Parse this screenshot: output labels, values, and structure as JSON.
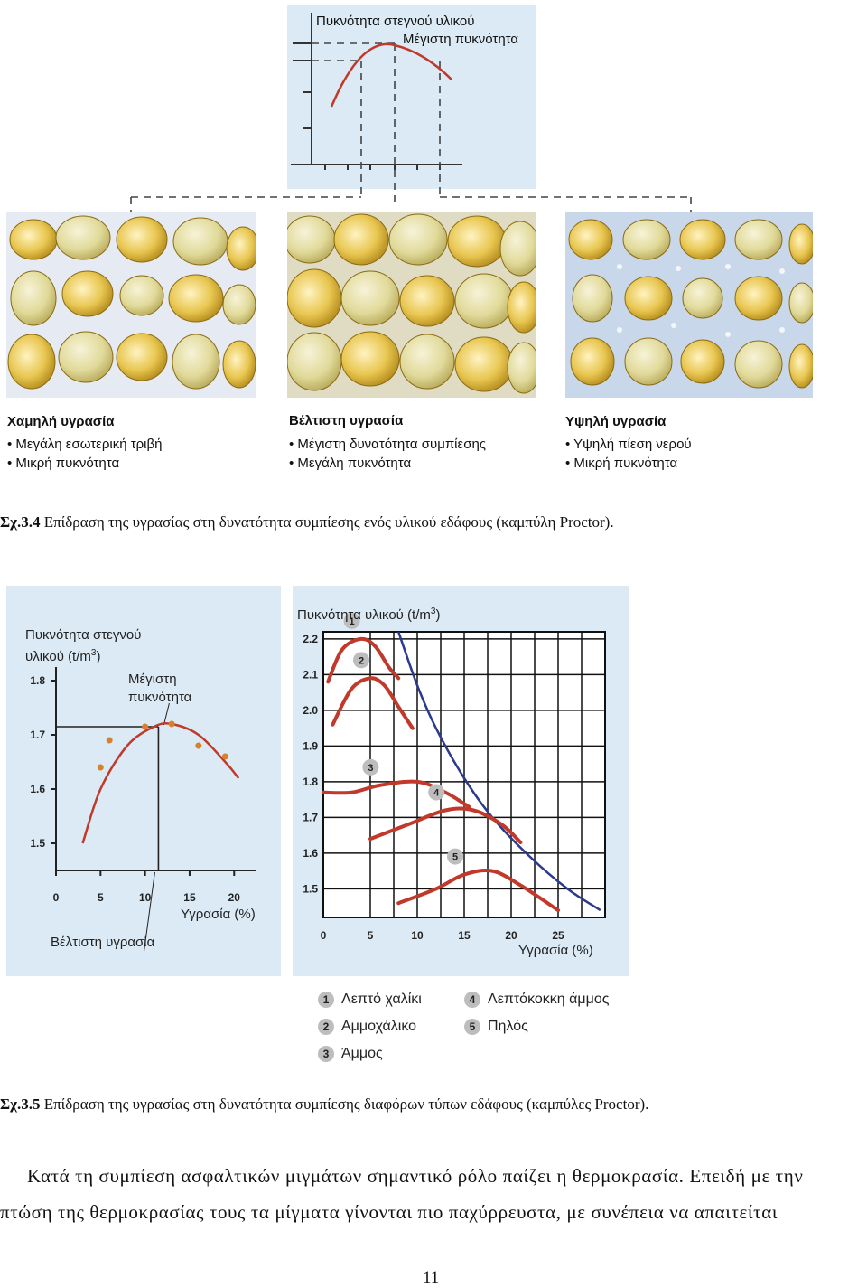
{
  "fig34": {
    "top_chart": {
      "y_label": "Πυκνότητα στεγνού υλικού",
      "peak_label": "Μέγιστη πυκνότητα"
    },
    "panels": [
      {
        "title": "Χαμηλή υγρασία",
        "bullets": [
          "Μεγάλη εσωτερική τριβή",
          "Μικρή πυκνότητα"
        ]
      },
      {
        "title": "Βέλτιστη υγρασία",
        "bullets": [
          "Μέγιστη δυνατότητα συμπίεσης",
          "Μεγάλη πυκνότητα"
        ]
      },
      {
        "title": "Υψηλή υγρασία",
        "bullets": [
          "Υψηλή πίεση νερού",
          "Μικρή πυκνότητα"
        ]
      }
    ],
    "caption_num": "Σχ.3.4",
    "caption_text": " Επίδραση της υγρασίας στη δυνατότητα συμπίεσης ενός υλικού εδάφους (καμπύλη Proctor)."
  },
  "chart_data": [
    {
      "type": "line",
      "title": "",
      "ylabel_line1": "Πυκνότητα στεγνού",
      "ylabel_line2": "υλικού (t/m",
      "ylabel_sup": "3",
      "ylabel_end": ")",
      "xlabel": "Υγρασία (%)",
      "annotation_peak": "Μέγιστη",
      "annotation_peak2": "πυκνότητα",
      "annotation_opt": "Βέλτιστη υγρασία",
      "x_ticks": [
        "0",
        "5",
        "10",
        "15",
        "20"
      ],
      "y_ticks": [
        "1.8",
        "1.7",
        "1.6",
        "1.5"
      ],
      "xlim": [
        0,
        22
      ],
      "ylim": [
        1.45,
        1.85
      ],
      "curve": {
        "x": [
          3,
          5,
          8,
          11,
          13,
          16,
          19,
          20.5
        ],
        "y": [
          1.5,
          1.6,
          1.68,
          1.715,
          1.72,
          1.7,
          1.65,
          1.62
        ]
      },
      "points": {
        "x": [
          5,
          6,
          10,
          13,
          16,
          19
        ],
        "y": [
          1.64,
          1.69,
          1.715,
          1.72,
          1.68,
          1.66
        ]
      },
      "optimum_x": 11.5,
      "optimum_y": 1.715,
      "colors": {
        "curve": "#c0392b",
        "points": "#d9802a",
        "lines": "#222222"
      }
    },
    {
      "type": "line",
      "title": "",
      "ylabel": "Πυκνότητα υλικού (t/m",
      "ylabel_sup": "3",
      "ylabel_end": ")",
      "xlabel": "Υγρασία (%)",
      "x_ticks": [
        "0",
        "5",
        "10",
        "15",
        "20",
        "25"
      ],
      "y_ticks": [
        "2.2",
        "2.1",
        "2.0",
        "1.9",
        "1.8",
        "1.7",
        "1.6",
        "1.5"
      ],
      "xlim": [
        0,
        30
      ],
      "ylim": [
        1.42,
        2.22
      ],
      "series": [
        {
          "name": "1",
          "x": [
            0.5,
            2,
            4,
            5.5,
            7,
            8
          ],
          "y": [
            2.08,
            2.17,
            2.2,
            2.18,
            2.12,
            2.09
          ]
        },
        {
          "name": "2",
          "x": [
            1,
            3,
            5,
            6.5,
            8,
            9.5
          ],
          "y": [
            1.96,
            2.06,
            2.09,
            2.07,
            2.01,
            1.95
          ]
        },
        {
          "name": "3",
          "x": [
            0,
            3,
            6,
            10,
            13,
            15.5
          ],
          "y": [
            1.77,
            1.77,
            1.79,
            1.8,
            1.77,
            1.73
          ]
        },
        {
          "name": "4",
          "x": [
            5,
            9,
            13,
            16,
            19,
            21
          ],
          "y": [
            1.64,
            1.68,
            1.72,
            1.72,
            1.68,
            1.63
          ]
        },
        {
          "name": "5",
          "x": [
            8,
            12,
            15,
            18,
            21,
            25
          ],
          "y": [
            1.46,
            1.5,
            1.54,
            1.55,
            1.51,
            1.44
          ]
        }
      ],
      "zero_air_voids": {
        "x": [
          8,
          10,
          12,
          15,
          18,
          22,
          26,
          29.5
        ],
        "y": [
          2.22,
          2.07,
          1.95,
          1.81,
          1.7,
          1.59,
          1.5,
          1.44
        ]
      },
      "colors": {
        "series": "#c0392b",
        "zav": "#2b3a8c",
        "grid": "#111111"
      }
    }
  ],
  "fig35_legend": [
    {
      "num": "1",
      "label": "Λεπτό χαλίκι"
    },
    {
      "num": "2",
      "label": "Αμμοχάλικο"
    },
    {
      "num": "3",
      "label": "Άμμος"
    },
    {
      "num": "4",
      "label": "Λεπτόκοκκη άμμος"
    },
    {
      "num": "5",
      "label": "Πηλός"
    }
  ],
  "fig35": {
    "caption_num": "Σχ.3.5",
    "caption_text": " Επίδραση της υγρασίας στη δυνατότητα συμπίεσης διαφόρων τύπων εδάφους (καμπύλες Proctor)."
  },
  "body": {
    "line1": "Κατά τη συμπίεση ασφαλτικών μιγμάτων σημαντικό ρόλο παίζει η θερμοκρασία. Επειδή με την",
    "line2": "πτώση της θερμοκρασίας τους τα μίγματα γίνονται πιο παχύρρευστα, με συνέπεια να απαιτείται"
  },
  "page_number": "11"
}
